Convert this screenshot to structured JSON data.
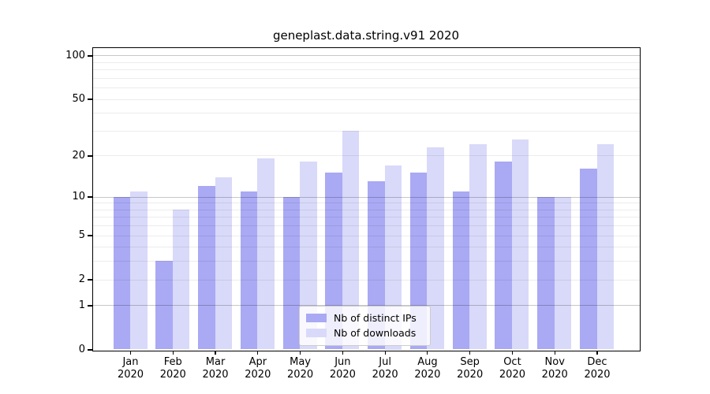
{
  "title": "geneplast.data.string.v91 2020",
  "colors": {
    "distinct_ips": "#a9a9f4",
    "downloads": "#d9d9f9",
    "axis": "#000000",
    "grid_major": "#c9c9c9",
    "grid_minor": "#ededed",
    "legend_border": "#cccccc"
  },
  "legend": {
    "items": [
      {
        "label": "Nb of distinct IPs",
        "color_key": "distinct_ips"
      },
      {
        "label": "Nb of downloads",
        "color_key": "downloads"
      }
    ]
  },
  "y_axis": {
    "tick_values": [
      0,
      1,
      2,
      5,
      10,
      20,
      50,
      100
    ],
    "tick_labels": [
      "0",
      "1",
      "2",
      "5",
      "10",
      "20",
      "50",
      "100"
    ],
    "minor_gridline_values": [
      2,
      3,
      4,
      5,
      6,
      7,
      8,
      9,
      20,
      30,
      40,
      50,
      60,
      70,
      80,
      90
    ],
    "major_gridline_values": [
      1,
      10,
      100
    ]
  },
  "x_axis": {
    "tick_labels_line1": [
      "Jan",
      "Feb",
      "Mar",
      "Apr",
      "May",
      "Jun",
      "Jul",
      "Aug",
      "Sep",
      "Oct",
      "Nov",
      "Dec"
    ],
    "tick_labels_line2": [
      "2020",
      "2020",
      "2020",
      "2020",
      "2020",
      "2020",
      "2020",
      "2020",
      "2020",
      "2020",
      "2020",
      "2020"
    ]
  },
  "chart_data": {
    "type": "bar",
    "title": "geneplast.data.string.v91 2020",
    "categories": [
      "Jan 2020",
      "Feb 2020",
      "Mar 2020",
      "Apr 2020",
      "May 2020",
      "Jun 2020",
      "Jul 2020",
      "Aug 2020",
      "Sep 2020",
      "Oct 2020",
      "Nov 2020",
      "Dec 2020"
    ],
    "series": [
      {
        "name": "Nb of distinct IPs",
        "values": [
          10,
          3,
          12,
          11,
          10,
          15,
          13,
          15,
          11,
          18,
          10,
          16
        ],
        "color": "#a9a9f4"
      },
      {
        "name": "Nb of downloads",
        "values": [
          11,
          8,
          14,
          19,
          18,
          30,
          17,
          23,
          24,
          26,
          10,
          24
        ],
        "color": "#d9d9f9"
      }
    ],
    "xlabel": "",
    "ylabel": "",
    "y_scale": "log1p",
    "y_ticks": [
      0,
      1,
      2,
      5,
      10,
      20,
      50,
      100
    ],
    "ylim": [
      0,
      113
    ],
    "grid": true,
    "legend_position": "lower center"
  }
}
